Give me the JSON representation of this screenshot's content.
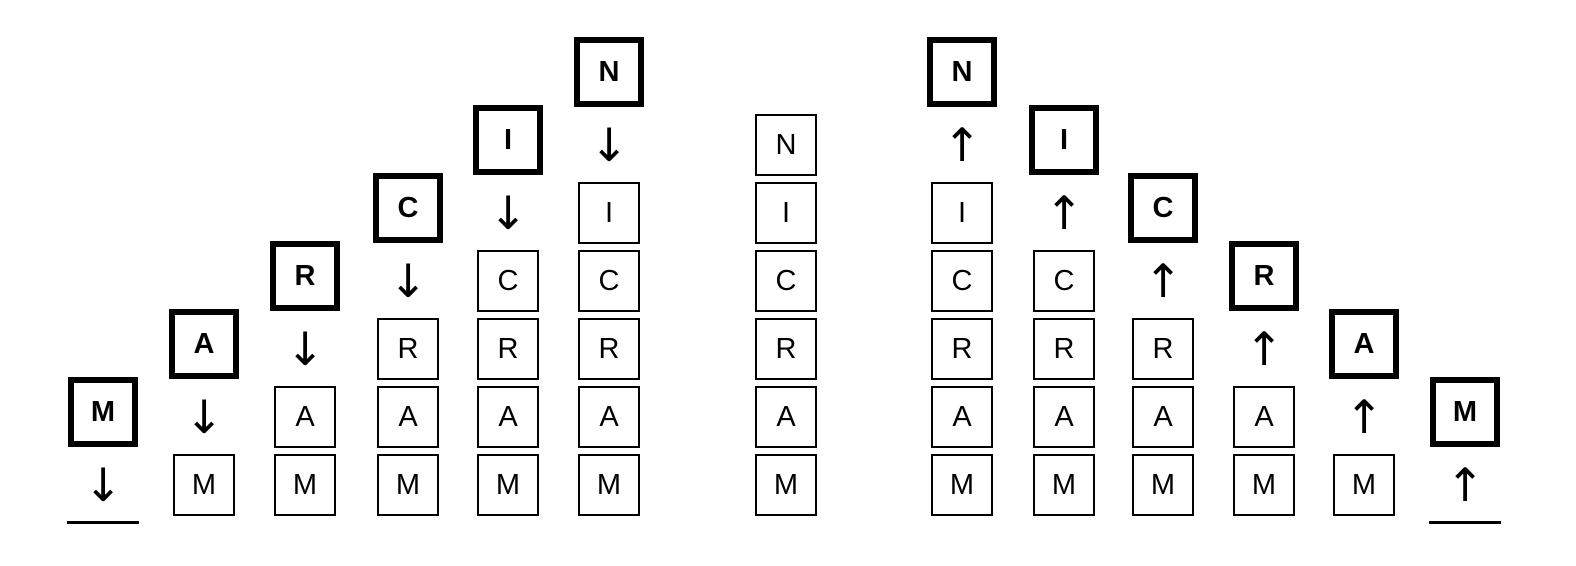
{
  "stack_sequence": [
    "M",
    "A",
    "R",
    "C",
    "I",
    "N"
  ],
  "arrows": {
    "push": "↓",
    "pop": "↑"
  },
  "push_steps": [
    {
      "incoming": "M",
      "stack": []
    },
    {
      "incoming": "A",
      "stack": [
        "M"
      ]
    },
    {
      "incoming": "R",
      "stack": [
        "M",
        "A"
      ]
    },
    {
      "incoming": "C",
      "stack": [
        "M",
        "A",
        "R"
      ]
    },
    {
      "incoming": "I",
      "stack": [
        "M",
        "A",
        "R",
        "C"
      ]
    },
    {
      "incoming": "N",
      "stack": [
        "M",
        "A",
        "R",
        "C",
        "I"
      ]
    }
  ],
  "full_stack": [
    "M",
    "A",
    "R",
    "C",
    "I",
    "N"
  ],
  "pop_steps": [
    {
      "outgoing": "N",
      "stack": [
        "M",
        "A",
        "R",
        "C",
        "I"
      ]
    },
    {
      "outgoing": "I",
      "stack": [
        "M",
        "A",
        "R",
        "C"
      ]
    },
    {
      "outgoing": "C",
      "stack": [
        "M",
        "A",
        "R"
      ]
    },
    {
      "outgoing": "R",
      "stack": [
        "M",
        "A"
      ]
    },
    {
      "outgoing": "A",
      "stack": [
        "M"
      ]
    },
    {
      "outgoing": "M",
      "stack": []
    }
  ]
}
